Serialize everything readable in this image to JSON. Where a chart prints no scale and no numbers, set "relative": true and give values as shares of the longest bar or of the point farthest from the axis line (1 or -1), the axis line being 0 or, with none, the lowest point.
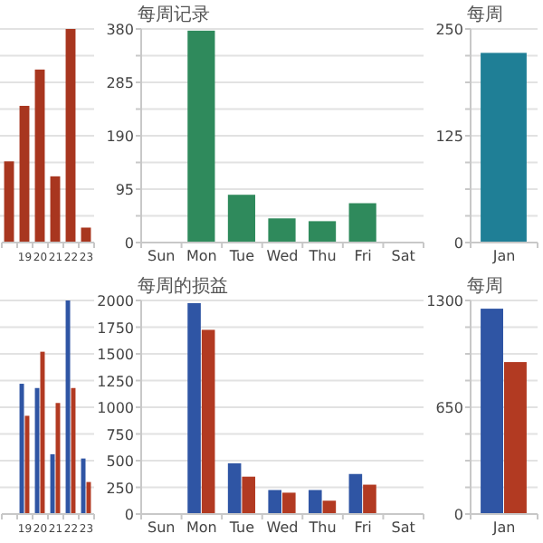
{
  "chart_data": [
    {
      "type": "bar",
      "relative": true,
      "categories": [
        null,
        "19",
        "20",
        "21",
        "22",
        "23"
      ],
      "values": [
        0.38,
        0.64,
        0.81,
        0.31,
        1,
        0.07
      ],
      "color": "#a8361f",
      "grid": true
    },
    {
      "type": "bar",
      "title": "每周记录",
      "categories": [
        "Sun",
        "Mon",
        "Tue",
        "Wed",
        "Thu",
        "Fri",
        "Sat"
      ],
      "values": [
        null,
        377,
        85,
        43,
        38,
        70,
        null
      ],
      "color": "#2f8a5c",
      "ylim": [
        0,
        380
      ],
      "yticks": [
        0,
        {
          "value": 47.5,
          "label": null
        },
        95,
        {
          "value": 142.5,
          "label": null
        },
        190,
        {
          "value": 237.5,
          "label": null
        },
        285,
        {
          "value": 332.5,
          "label": null
        },
        380
      ],
      "grid": true
    },
    {
      "type": "bar",
      "title": "每周",
      "categories": [
        "Jan"
      ],
      "values": [
        222
      ],
      "color": "#1f7f96",
      "ylim": [
        0,
        250
      ],
      "yticks": [
        0,
        {
          "value": 31.25,
          "label": null
        },
        {
          "value": 62.5,
          "label": null
        },
        {
          "value": 93.75,
          "label": null
        },
        125,
        {
          "value": 156.25,
          "label": null
        },
        {
          "value": 187.5,
          "label": null
        },
        {
          "value": 218.75,
          "label": null
        },
        250
      ],
      "grid": true
    },
    {
      "type": "bar",
      "relative": true,
      "categories": [
        null,
        "19",
        "20",
        "21",
        "22",
        "23"
      ],
      "series": [
        {
          "color": "#2f55a4",
          "values": [
            null,
            0.61,
            0.59,
            0.28,
            1,
            0.26
          ]
        },
        {
          "color": "#b23a22",
          "values": [
            null,
            0.46,
            0.76,
            0.52,
            0.59,
            0.15
          ]
        }
      ],
      "grid": true
    },
    {
      "type": "bar",
      "title": "每周的损益",
      "categories": [
        "Sun",
        "Mon",
        "Tue",
        "Wed",
        "Thu",
        "Fri",
        "Sat"
      ],
      "series": [
        {
          "color": "#2f55a4",
          "values": [
            null,
            1975,
            475,
            225,
            225,
            375,
            null
          ]
        },
        {
          "color": "#b23a22",
          "values": [
            null,
            1725,
            350,
            200,
            125,
            275,
            null
          ]
        }
      ],
      "ylim": [
        0,
        2000
      ],
      "yticks": [
        0,
        250,
        500,
        750,
        1000,
        1250,
        1500,
        1750,
        2000
      ],
      "grid": true
    },
    {
      "type": "bar",
      "title": "每周",
      "categories": [
        "Jan"
      ],
      "series": [
        {
          "color": "#2f55a4",
          "values": [
            1250
          ]
        },
        {
          "color": "#b23a22",
          "values": [
            925
          ]
        }
      ],
      "ylim": [
        0,
        1300
      ],
      "yticks": [
        0,
        {
          "value": 162.5,
          "label": null
        },
        {
          "value": 325,
          "label": null
        },
        {
          "value": 487.5,
          "label": null
        },
        650,
        {
          "value": 812.5,
          "label": null
        },
        {
          "value": 975,
          "label": null
        },
        {
          "value": 1137.5,
          "label": null
        },
        1300
      ],
      "grid": true
    }
  ]
}
